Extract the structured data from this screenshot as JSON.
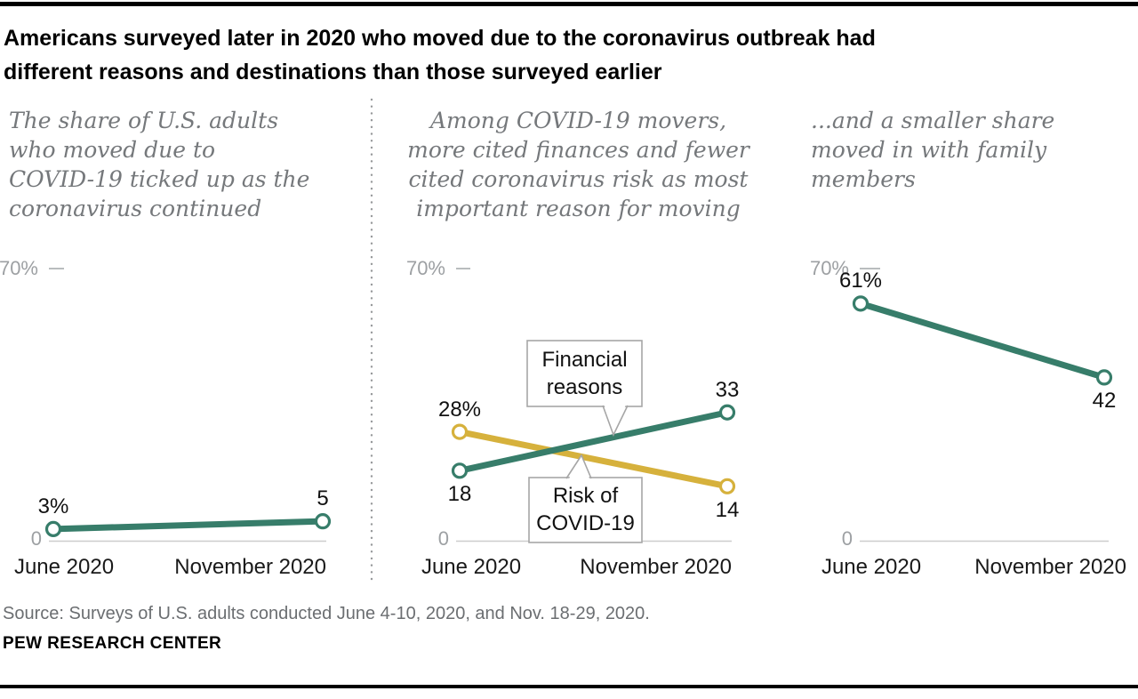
{
  "page": {
    "title": "Americans surveyed later in 2020 who moved due to the coronavirus outbreak had\ndifferent reasons and destinations than those surveyed earlier",
    "source": "Source: Surveys of U.S. adults conducted June 4-10, 2020, and Nov. 18-29, 2020.",
    "brand": "PEW RESEARCH CENTER"
  },
  "colors": {
    "green": "#377d6a",
    "gold": "#d6b13c",
    "axis_line": "#cdcdcd",
    "tick_line": "#b9bcbe",
    "tick_text": "#9da0a3",
    "label_text": "#111111",
    "subtitle_text": "#75787b",
    "source_text": "#6b6e71",
    "callout_border": "#a6a6a6",
    "separator": "#97999b"
  },
  "chart_data": [
    {
      "type": "line",
      "subtitle": "The share of U.S. adults\nwho moved due to\nCOVID-19 ticked up as the\ncoronavirus continued",
      "x": [
        "June 2020",
        "November 2020"
      ],
      "ylim": [
        0,
        70
      ],
      "ytick_top": "70%",
      "ytick_zero": "0",
      "series": [
        {
          "color": "green",
          "values": [
            3,
            5
          ],
          "point_labels": [
            "3%",
            "5"
          ],
          "label_pos": [
            "above",
            "above"
          ]
        }
      ]
    },
    {
      "type": "line",
      "subtitle": "Among COVID-19 movers,\nmore cited finances and fewer\ncited coronavirus risk as most\nimportant reason for moving",
      "x": [
        "June 2020",
        "November 2020"
      ],
      "ylim": [
        0,
        70
      ],
      "ytick_top": "70%",
      "ytick_zero": "0",
      "series": [
        {
          "name": "Financial reasons",
          "color": "green",
          "values": [
            18,
            33
          ],
          "point_labels": [
            "18",
            "33"
          ],
          "label_pos": [
            "below",
            "above"
          ]
        },
        {
          "name": "Risk of COVID-19",
          "color": "gold",
          "values": [
            28,
            14
          ],
          "point_labels": [
            "28%",
            "14"
          ],
          "label_pos": [
            "above",
            "below"
          ]
        }
      ],
      "annotations": [
        {
          "text": "Financial\nreasons",
          "target_series": "Financial reasons"
        },
        {
          "text": "Risk of\nCOVID-19",
          "target_series": "Risk of COVID-19"
        }
      ]
    },
    {
      "type": "line",
      "subtitle": "...and a smaller share\nmoved in with family\nmembers",
      "x": [
        "June 2020",
        "November 2020"
      ],
      "ylim": [
        0,
        70
      ],
      "ytick_top": "70%",
      "ytick_zero": "0",
      "series": [
        {
          "color": "green",
          "values": [
            61,
            42
          ],
          "point_labels": [
            "61%",
            "42"
          ],
          "label_pos": [
            "above",
            "below"
          ]
        }
      ]
    }
  ]
}
